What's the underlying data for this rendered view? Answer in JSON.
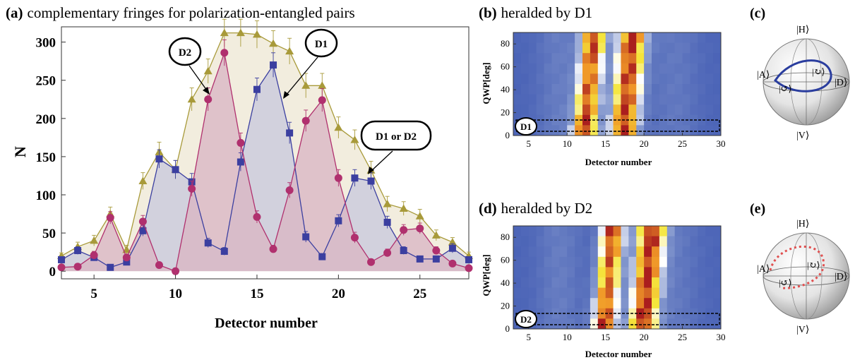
{
  "colors": {
    "sum": "#a89a3a",
    "sum_fill": "#efe9d6",
    "d1": "#3b3fa0",
    "d1_fill": "#c9c9dc",
    "d2": "#b0306e",
    "d2_fill": "#d9b7c4",
    "heat_low": "#3b55b0",
    "heat_high": "#ffffff",
    "loop_c": "#2a3d9e",
    "loop_e": "#e05050"
  },
  "panel_a": {
    "title_tag": "(a)",
    "title_text": "complementary fringes for polarization-entangled pairs",
    "callout_d2": "D2",
    "callout_d1": "D1",
    "callout_d1d2": "D1 or D2"
  },
  "panel_b": {
    "title_tag": "(b)",
    "title_text": "heralded by D1",
    "box_label": "D1"
  },
  "panel_c": {
    "tag": "(c)",
    "kets": {
      "top": "|H⟩",
      "bottom": "|V⟩",
      "left": "|A⟩",
      "right": "|D⟩",
      "circ1": "|↻⟩",
      "circ2": "|↺⟩"
    }
  },
  "panel_d": {
    "title_tag": "(d)",
    "title_text": "heralded by D2",
    "box_label": "D2"
  },
  "panel_e": {
    "tag": "(e)",
    "kets": {
      "top": "|H⟩",
      "bottom": "|V⟩",
      "left": "|A⟩",
      "right": "|D⟩",
      "circ1": "|↻⟩",
      "circ2": "|↺⟩"
    }
  },
  "chart_data": [
    {
      "type": "line",
      "panel": "a",
      "title": "complementary fringes for polarization-entangled pairs",
      "xlabel": "Detector number",
      "ylabel": "N",
      "xlim": [
        3,
        28
      ],
      "ylim": [
        -10,
        320
      ],
      "xticks": [
        5,
        10,
        15,
        20,
        25
      ],
      "yticks": [
        0,
        50,
        100,
        150,
        200,
        250,
        300
      ],
      "x": [
        3,
        4,
        5,
        6,
        7,
        8,
        9,
        10,
        11,
        12,
        13,
        14,
        15,
        16,
        17,
        18,
        19,
        20,
        21,
        22,
        23,
        24,
        25,
        26,
        27,
        28
      ],
      "series": [
        {
          "name": "D1 or D2",
          "marker": "triangle",
          "values": [
            20,
            32,
            40,
            75,
            28,
            118,
            156,
            133,
            225,
            262,
            312,
            312,
            310,
            298,
            288,
            243,
            243,
            188,
            172,
            132,
            88,
            82,
            72,
            47,
            38,
            20
          ],
          "errors": [
            4,
            6,
            7,
            9,
            6,
            11,
            13,
            12,
            15,
            16,
            18,
            18,
            18,
            17,
            17,
            16,
            16,
            14,
            13,
            12,
            10,
            9,
            9,
            7,
            6,
            5
          ]
        },
        {
          "name": "D1",
          "marker": "square",
          "values": [
            15,
            27,
            18,
            5,
            12,
            53,
            147,
            133,
            117,
            37,
            26,
            143,
            238,
            270,
            181,
            45,
            19,
            66,
            122,
            118,
            64,
            27,
            16,
            16,
            30,
            15
          ],
          "errors": [
            4,
            5,
            4,
            3,
            4,
            7,
            12,
            12,
            11,
            6,
            5,
            12,
            15,
            16,
            14,
            7,
            4,
            8,
            11,
            11,
            8,
            5,
            4,
            4,
            6,
            4
          ]
        },
        {
          "name": "D2",
          "marker": "circle",
          "values": [
            5,
            6,
            21,
            70,
            18,
            65,
            8,
            0,
            108,
            225,
            286,
            168,
            71,
            29,
            106,
            197,
            224,
            122,
            44,
            12,
            24,
            54,
            56,
            27,
            10,
            4
          ],
          "errors": [
            2,
            3,
            5,
            8,
            4,
            8,
            3,
            2,
            10,
            15,
            17,
            13,
            8,
            5,
            10,
            14,
            15,
            11,
            7,
            3,
            5,
            7,
            7,
            5,
            3,
            2
          ]
        }
      ]
    },
    {
      "type": "heatmap",
      "panel": "b",
      "title": "heralded by D1",
      "xlabel": "Detector number",
      "ylabel": "QWP[deg]",
      "xlim": [
        3,
        30
      ],
      "ylim": [
        0,
        90
      ],
      "xticks": [
        5,
        10,
        15,
        20,
        25,
        30
      ],
      "yticks": [
        0,
        20,
        40,
        60,
        80
      ],
      "fringe_centers_deg0": [
        13.5,
        18.5
      ],
      "fringe_shift_per_90deg": -1.2
    },
    {
      "type": "heatmap",
      "panel": "d",
      "title": "heralded by D2",
      "xlabel": "Detector number",
      "ylabel": "QWP[deg]",
      "xlim": [
        3,
        30
      ],
      "ylim": [
        0,
        90
      ],
      "xticks": [
        5,
        10,
        15,
        20,
        25,
        30
      ],
      "yticks": [
        0,
        20,
        40,
        60,
        80
      ],
      "fringe_centers_deg0": [
        16.0,
        21.0
      ],
      "fringe_shift_per_90deg": -1.2
    }
  ]
}
